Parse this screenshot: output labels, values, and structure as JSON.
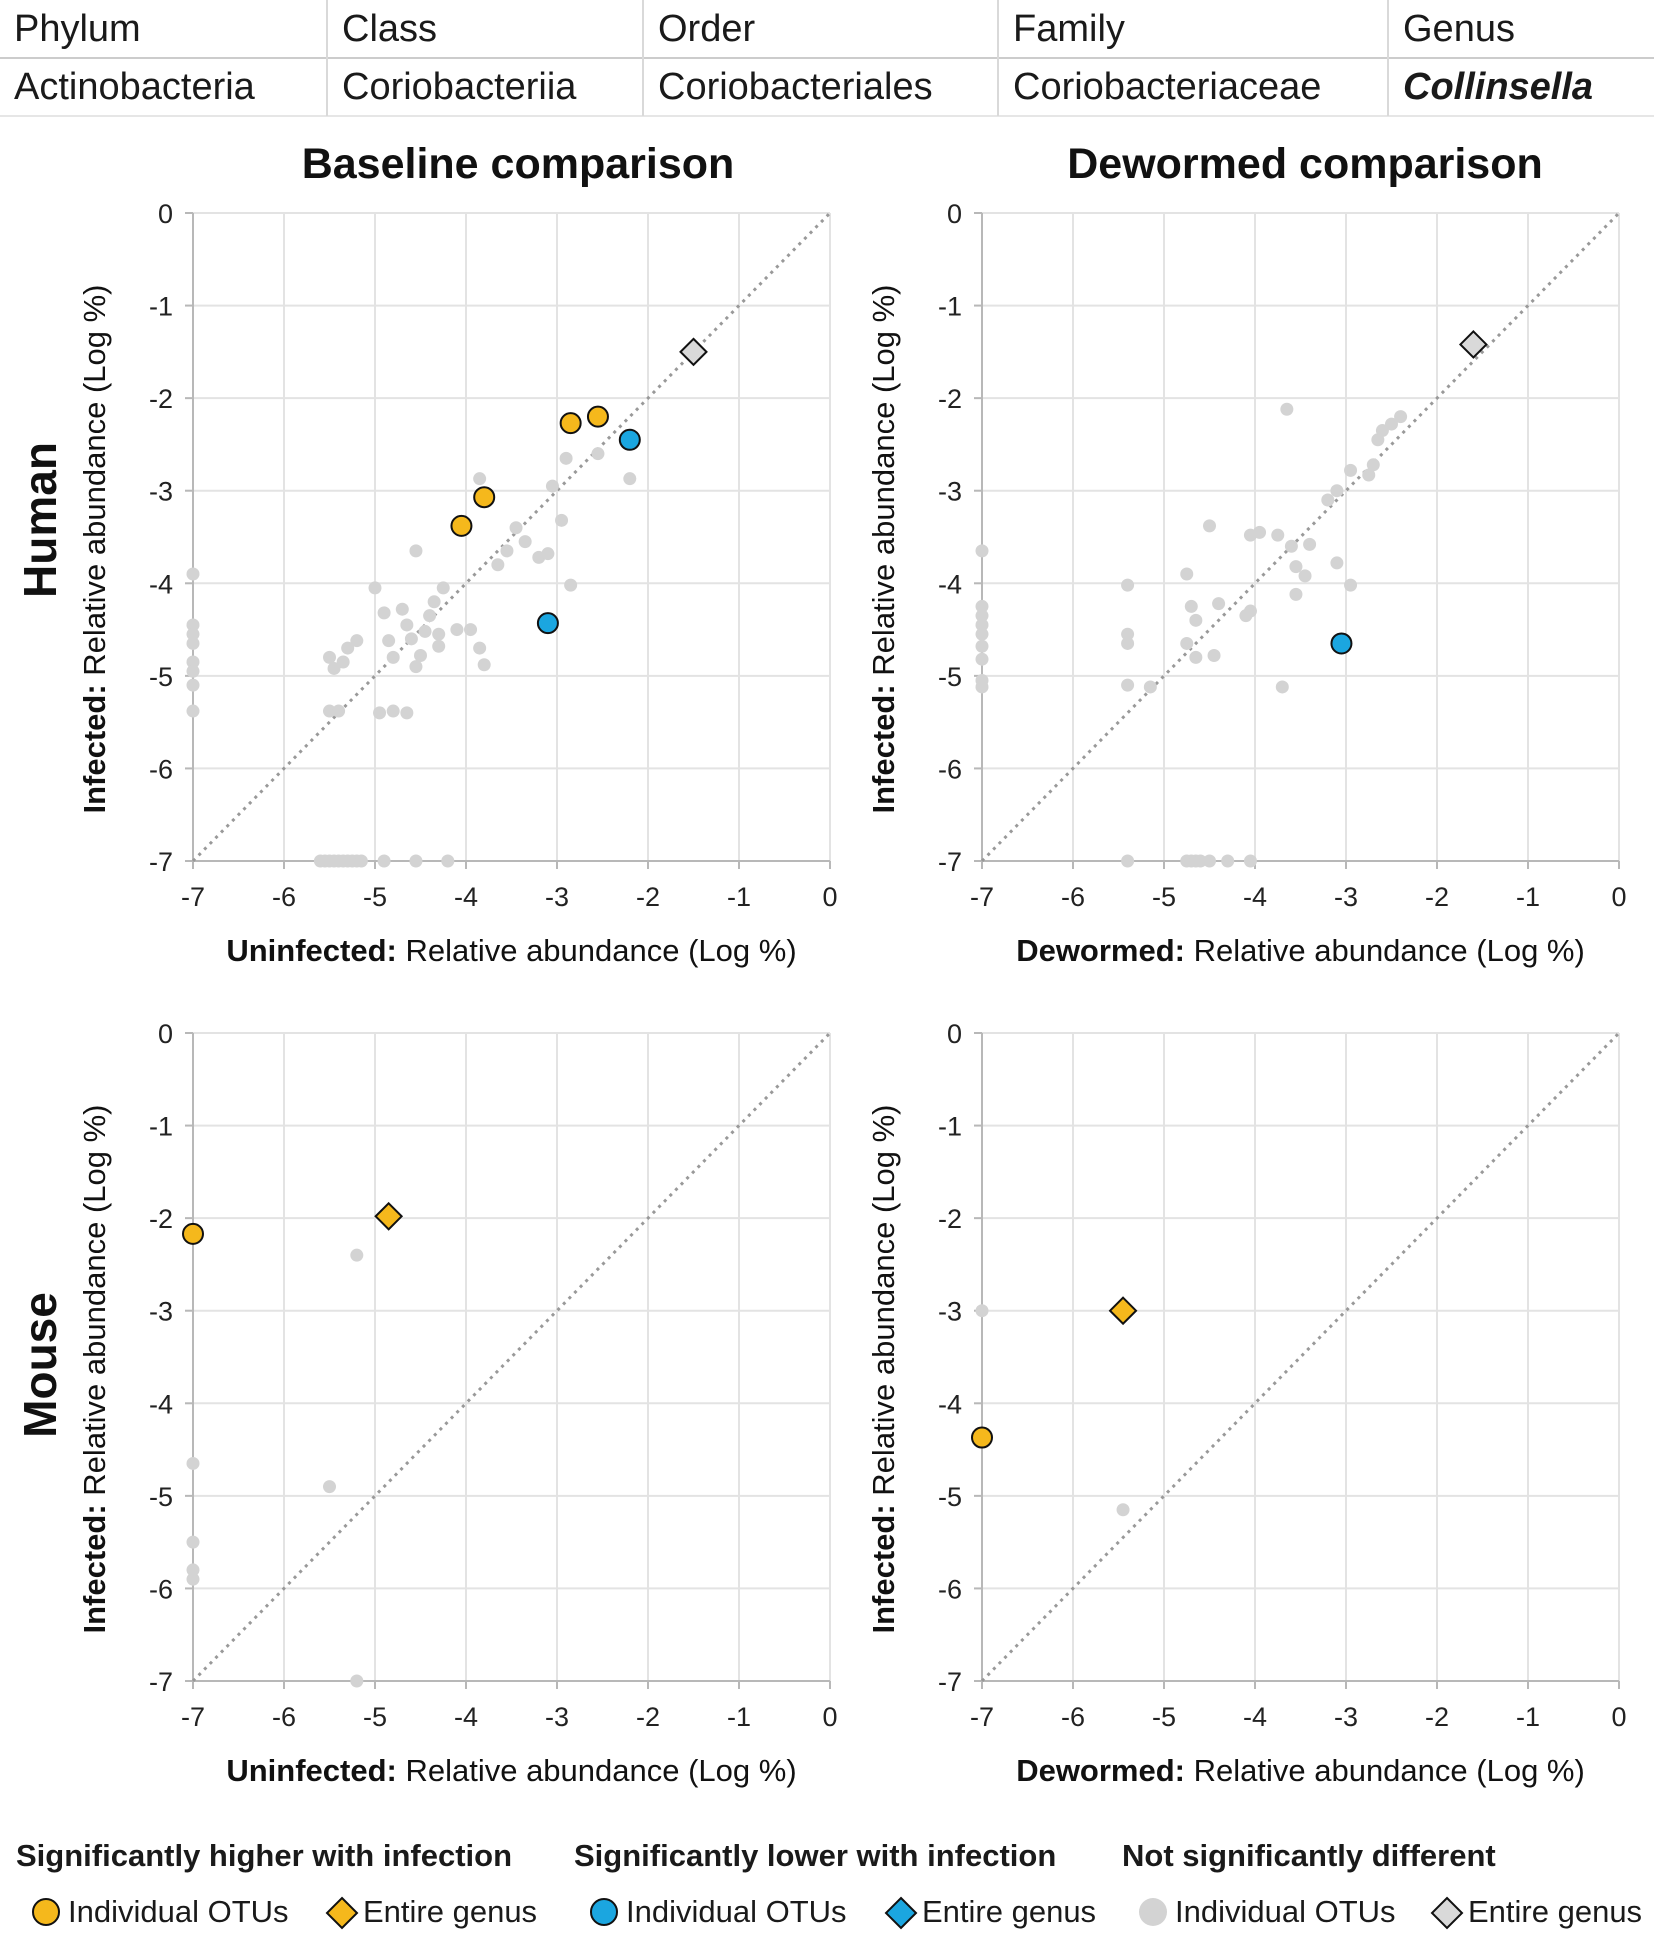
{
  "taxonomy": {
    "headers": [
      "Phylum",
      "Class",
      "Order",
      "Family",
      "Genus"
    ],
    "values": [
      "Actinobacteria",
      "Coriobacteriia",
      "Coriobacteriales",
      "Coriobacteriaceae",
      "Collinsella"
    ]
  },
  "column_titles": [
    "Baseline comparison",
    "Dewormed comparison"
  ],
  "row_titles": [
    "Human",
    "Mouse"
  ],
  "colors": {
    "higher": "#f5b81c",
    "lower": "#1ba6e0",
    "notsig": "#d3d3d3",
    "notsig_diamond": "#d9d9d9",
    "marker_stroke": "#111111",
    "diagonal": "#999999",
    "grid": "#e3e3e3",
    "axis": "#b8b8b8"
  },
  "chart_data": [
    {
      "id": "human-baseline",
      "type": "scatter",
      "title": "Baseline comparison",
      "xlabel_bold": "Uninfected:",
      "xlabel": "Relative abundance (Log %)",
      "ylabel_bold": "Infected:",
      "ylabel": "Relative abundance (Log %)",
      "xlim": [
        -7,
        0
      ],
      "ylim": [
        -7,
        0
      ],
      "xticks": [
        -7,
        -6,
        -5,
        -4,
        -3,
        -2,
        -1,
        0
      ],
      "yticks": [
        0,
        -1,
        -2,
        -3,
        -4,
        -5,
        -6,
        -7
      ],
      "notsig_points": [
        [
          -7,
          -3.9
        ],
        [
          -7,
          -4.45
        ],
        [
          -7,
          -4.55
        ],
        [
          -7,
          -4.65
        ],
        [
          -7,
          -4.85
        ],
        [
          -7,
          -4.95
        ],
        [
          -7,
          -5.1
        ],
        [
          -7,
          -5.38
        ],
        [
          -5.6,
          -7
        ],
        [
          -5.55,
          -7
        ],
        [
          -5.5,
          -7
        ],
        [
          -5.45,
          -7
        ],
        [
          -5.4,
          -7
        ],
        [
          -5.35,
          -7
        ],
        [
          -5.3,
          -7
        ],
        [
          -5.25,
          -7
        ],
        [
          -5.2,
          -7
        ],
        [
          -5.15,
          -7
        ],
        [
          -4.9,
          -7
        ],
        [
          -4.55,
          -7
        ],
        [
          -4.2,
          -7
        ],
        [
          -5.5,
          -5.38
        ],
        [
          -5.4,
          -5.38
        ],
        [
          -4.95,
          -5.4
        ],
        [
          -4.8,
          -5.38
        ],
        [
          -4.65,
          -5.4
        ],
        [
          -5.5,
          -4.8
        ],
        [
          -5.45,
          -4.92
        ],
        [
          -5.35,
          -4.85
        ],
        [
          -5.3,
          -4.7
        ],
        [
          -5.2,
          -4.62
        ],
        [
          -5.0,
          -4.05
        ],
        [
          -4.9,
          -4.32
        ],
        [
          -4.85,
          -4.62
        ],
        [
          -4.8,
          -4.8
        ],
        [
          -4.7,
          -4.28
        ],
        [
          -4.65,
          -4.45
        ],
        [
          -4.6,
          -4.6
        ],
        [
          -4.55,
          -4.9
        ],
        [
          -4.5,
          -4.78
        ],
        [
          -4.45,
          -4.52
        ],
        [
          -4.4,
          -4.35
        ],
        [
          -4.35,
          -4.2
        ],
        [
          -4.3,
          -4.55
        ],
        [
          -4.3,
          -4.68
        ],
        [
          -4.25,
          -4.05
        ],
        [
          -4.1,
          -4.5
        ],
        [
          -3.95,
          -4.5
        ],
        [
          -3.85,
          -4.7
        ],
        [
          -3.8,
          -4.88
        ],
        [
          -4.55,
          -3.65
        ],
        [
          -3.65,
          -3.8
        ],
        [
          -3.55,
          -3.65
        ],
        [
          -3.45,
          -3.4
        ],
        [
          -3.35,
          -3.55
        ],
        [
          -3.2,
          -3.72
        ],
        [
          -3.1,
          -3.68
        ],
        [
          -3.05,
          -2.95
        ],
        [
          -2.95,
          -3.32
        ],
        [
          -2.85,
          -4.02
        ],
        [
          -2.9,
          -2.65
        ],
        [
          -3.85,
          -2.87
        ],
        [
          -2.55,
          -2.6
        ],
        [
          -2.2,
          -2.87
        ]
      ],
      "higher_points": [
        [
          -4.05,
          -3.38
        ],
        [
          -3.8,
          -3.07
        ],
        [
          -2.85,
          -2.27
        ],
        [
          -2.55,
          -2.2
        ]
      ],
      "lower_points": [
        [
          -3.1,
          -4.43
        ],
        [
          -2.2,
          -2.45
        ]
      ],
      "higher_genus": [],
      "notsig_genus": [
        [
          -1.5,
          -1.5
        ]
      ]
    },
    {
      "id": "human-dewormed",
      "type": "scatter",
      "title": "Dewormed comparison",
      "xlabel_bold": "Dewormed:",
      "xlabel": "Relative abundance (Log %)",
      "ylabel_bold": "Infected:",
      "ylabel": "Relative abundance (Log %)",
      "xlim": [
        -7,
        0
      ],
      "ylim": [
        -7,
        0
      ],
      "xticks": [
        -7,
        -6,
        -5,
        -4,
        -3,
        -2,
        -1,
        0
      ],
      "yticks": [
        0,
        -1,
        -2,
        -3,
        -4,
        -5,
        -6,
        -7
      ],
      "notsig_points": [
        [
          -7,
          -3.65
        ],
        [
          -7,
          -4.25
        ],
        [
          -7,
          -4.35
        ],
        [
          -7,
          -4.45
        ],
        [
          -7,
          -4.55
        ],
        [
          -7,
          -4.68
        ],
        [
          -7,
          -4.82
        ],
        [
          -7,
          -5.05
        ],
        [
          -7,
          -5.12
        ],
        [
          -5.4,
          -7
        ],
        [
          -4.75,
          -7
        ],
        [
          -4.7,
          -7
        ],
        [
          -4.65,
          -7
        ],
        [
          -4.6,
          -7
        ],
        [
          -4.5,
          -7
        ],
        [
          -4.3,
          -7
        ],
        [
          -4.05,
          -7
        ],
        [
          -5.4,
          -4.02
        ],
        [
          -5.4,
          -4.55
        ],
        [
          -5.4,
          -4.65
        ],
        [
          -5.4,
          -5.1
        ],
        [
          -5.15,
          -5.12
        ],
        [
          -4.75,
          -3.9
        ],
        [
          -4.75,
          -4.65
        ],
        [
          -4.7,
          -4.25
        ],
        [
          -4.65,
          -4.4
        ],
        [
          -4.65,
          -4.8
        ],
        [
          -4.5,
          -3.38
        ],
        [
          -4.45,
          -4.78
        ],
        [
          -4.4,
          -4.22
        ],
        [
          -4.1,
          -4.35
        ],
        [
          -4.05,
          -4.3
        ],
        [
          -4.05,
          -3.48
        ],
        [
          -3.95,
          -3.45
        ],
        [
          -3.75,
          -3.48
        ],
        [
          -3.7,
          -5.12
        ],
        [
          -3.65,
          -2.12
        ],
        [
          -3.6,
          -3.6
        ],
        [
          -3.55,
          -3.82
        ],
        [
          -3.55,
          -4.12
        ],
        [
          -3.45,
          -3.92
        ],
        [
          -3.4,
          -3.58
        ],
        [
          -3.2,
          -3.1
        ],
        [
          -3.1,
          -3.0
        ],
        [
          -3.1,
          -3.78
        ],
        [
          -2.95,
          -2.78
        ],
        [
          -2.95,
          -4.02
        ],
        [
          -2.75,
          -2.83
        ],
        [
          -2.7,
          -2.72
        ],
        [
          -2.65,
          -2.45
        ],
        [
          -2.6,
          -2.35
        ],
        [
          -2.5,
          -2.28
        ],
        [
          -2.4,
          -2.2
        ]
      ],
      "higher_points": [],
      "lower_points": [
        [
          -3.05,
          -4.65
        ]
      ],
      "higher_genus": [],
      "notsig_genus": [
        [
          -1.6,
          -1.42
        ]
      ]
    },
    {
      "id": "mouse-baseline",
      "type": "scatter",
      "title": "",
      "xlabel_bold": "Uninfected:",
      "xlabel": "Relative abundance (Log %)",
      "ylabel_bold": "Infected:",
      "ylabel": "Relative abundance (Log %)",
      "xlim": [
        -7,
        0
      ],
      "ylim": [
        -7,
        0
      ],
      "xticks": [
        -7,
        -6,
        -5,
        -4,
        -3,
        -2,
        -1,
        0
      ],
      "yticks": [
        0,
        -1,
        -2,
        -3,
        -4,
        -5,
        -6,
        -7
      ],
      "notsig_points": [
        [
          -7,
          -4.65
        ],
        [
          -7,
          -5.5
        ],
        [
          -7,
          -5.8
        ],
        [
          -7,
          -5.9
        ],
        [
          -5.2,
          -2.4
        ],
        [
          -5.5,
          -4.9
        ],
        [
          -5.2,
          -7
        ]
      ],
      "higher_points": [
        [
          -7,
          -2.17
        ]
      ],
      "lower_points": [],
      "higher_genus": [
        [
          -4.85,
          -1.98
        ]
      ],
      "notsig_genus": []
    },
    {
      "id": "mouse-dewormed",
      "type": "scatter",
      "title": "",
      "xlabel_bold": "Dewormed:",
      "xlabel": "Relative abundance (Log %)",
      "ylabel_bold": "Infected:",
      "ylabel": "Relative abundance (Log %)",
      "xlim": [
        -7,
        0
      ],
      "ylim": [
        -7,
        0
      ],
      "xticks": [
        -7,
        -6,
        -5,
        -4,
        -3,
        -2,
        -1,
        0
      ],
      "yticks": [
        0,
        -1,
        -2,
        -3,
        -4,
        -5,
        -6,
        -7
      ],
      "notsig_points": [
        [
          -7,
          -3.0
        ],
        [
          -5.45,
          -5.15
        ]
      ],
      "higher_points": [
        [
          -7,
          -4.37
        ]
      ],
      "lower_points": [],
      "higher_genus": [
        [
          -5.45,
          -3.0
        ]
      ],
      "notsig_genus": []
    }
  ],
  "legend": {
    "higher_title": "Significantly higher with infection",
    "lower_title": "Significantly lower with infection",
    "notsig_title": "Not significantly different",
    "individual_label": "Individual OTUs",
    "genus_label": "Entire genus"
  }
}
